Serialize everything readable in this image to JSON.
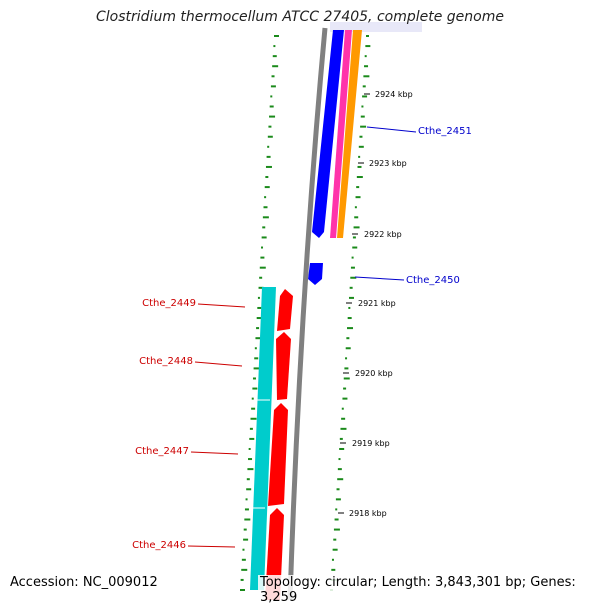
{
  "title": "Clostridium thermocellum ATCC 27405, complete genome",
  "footer": {
    "accession": "Accession: NC_009012",
    "summary": "Topology: circular; Length: 3,843,301 bp; Genes: 3,259"
  },
  "tick_labels": [
    "2924 kbp",
    "2923 kbp",
    "2922 kbp",
    "2921 kbp",
    "2920 kbp",
    "2919 kbp",
    "2918 kbp"
  ],
  "gene_labels": {
    "forward": [
      "Cthe_2451",
      "Cthe_2450"
    ],
    "reverse": [
      "Cthe_2449",
      "Cthe_2448",
      "Cthe_2447",
      "Cthe_2446"
    ]
  },
  "colors": {
    "forward_label": "#0000cc",
    "reverse_label": "#cc0000",
    "backbone": "#808080",
    "gc_ticks": "#1a8a1a",
    "feature_blue": "#0000ff",
    "feature_magenta": "#ff33aa",
    "feature_orange": "#ff9900",
    "feature_cyan": "#00cccc",
    "feature_red": "#ff0000"
  }
}
